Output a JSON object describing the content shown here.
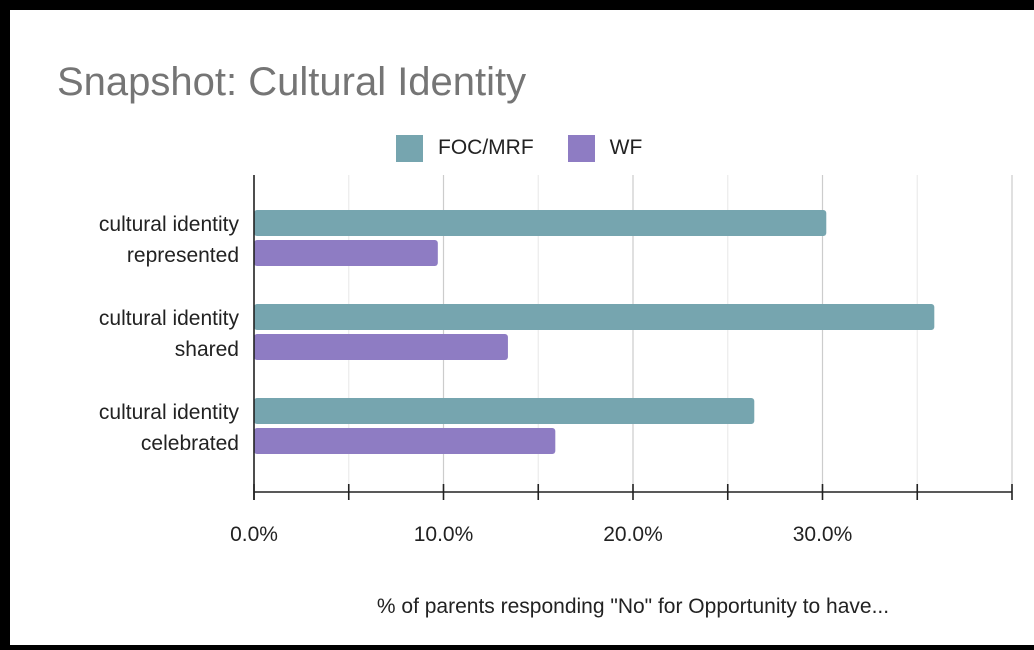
{
  "chart_data": {
    "type": "bar",
    "orientation": "horizontal",
    "title": "Snapshot: Cultural Identity",
    "xlabel": "% of parents responding \"No\" for Opportunity to have...",
    "ylabel": "",
    "categories": [
      [
        "cultural identity",
        "represented"
      ],
      [
        "cultural identity",
        "shared"
      ],
      [
        "cultural identity",
        "celebrated"
      ]
    ],
    "series": [
      {
        "name": "FOC/MRF",
        "color": "#76a5af",
        "values": [
          30.2,
          35.9,
          26.4
        ]
      },
      {
        "name": "WF",
        "color": "#8e7cc3",
        "values": [
          9.7,
          13.4,
          15.9
        ]
      }
    ],
    "xlim": [
      0,
      40
    ],
    "xticks": [
      0,
      10,
      20,
      30
    ],
    "xtick_labels": [
      "0.0%",
      "10.0%",
      "20.0%",
      "30.0%"
    ],
    "legend_position": "top",
    "grid": true
  }
}
